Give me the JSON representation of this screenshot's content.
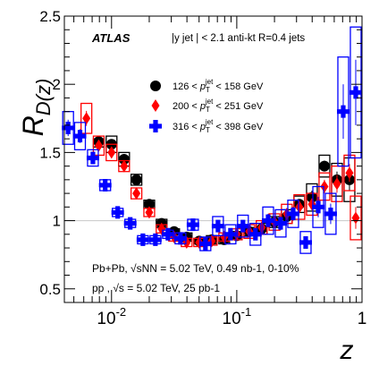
{
  "chart_data": {
    "type": "scatter",
    "x_scale": "log",
    "xlim": [
      0.0042,
      1.0
    ],
    "ylim": [
      0.4,
      2.5
    ],
    "xlabel": "z",
    "ylabel": "R_D(z)",
    "ylabel_main": "R",
    "ylabel_sub": "D(z)",
    "y_ticks": [
      0.5,
      1,
      1.5,
      2,
      2.5
    ],
    "y_tick_labels": [
      "0.5",
      "1",
      "1.5",
      "2",
      "2.5"
    ],
    "x_ticks": [
      0.01,
      0.1,
      1
    ],
    "x_tick_labels": [
      {
        "base": "10",
        "exp": "-2"
      },
      {
        "base": "10",
        "exp": "-1"
      },
      {
        "base": "1",
        "exp": ""
      }
    ],
    "reference_line": 1.0,
    "annotations": {
      "atlas": "ATLAS",
      "selection": "|y jet | < 2.1 anti-kt R=0.4 jets",
      "pbpb": "Pb+Pb, √sNN = 5.02 TeV, 0.49 nb-1, 0-10%",
      "pp": "pp , √s = 5.02 TeV, 25 pb-1"
    },
    "legend_position": "upper-center",
    "series": [
      {
        "name": "126 < pTjet < 158 GeV",
        "name_parts": {
          "low": "126",
          "high": "158",
          "unit": "GeV"
        },
        "marker": "circle",
        "color": "#000000",
        "x": [
          0.0079,
          0.01,
          0.0126,
          0.0158,
          0.02,
          0.0251,
          0.0316,
          0.0398,
          0.0501,
          0.0631,
          0.0794,
          0.1,
          0.126,
          0.158,
          0.2,
          0.251,
          0.316,
          0.398,
          0.501,
          0.631,
          0.794
        ],
        "y": [
          1.58,
          1.56,
          1.45,
          1.3,
          1.12,
          0.98,
          0.92,
          0.88,
          0.85,
          0.86,
          0.86,
          0.89,
          0.92,
          0.94,
          0.99,
          1.03,
          1.12,
          1.17,
          1.4,
          1.3,
          1.3
        ],
        "sys_hi": [
          1.6,
          1.62,
          1.5,
          1.34,
          1.15,
          1.01,
          0.94,
          0.91,
          0.87,
          0.89,
          0.89,
          0.92,
          0.95,
          0.98,
          1.03,
          1.08,
          1.18,
          1.27,
          1.48,
          1.42,
          1.46
        ],
        "sys_lo": [
          1.54,
          1.5,
          1.4,
          1.26,
          1.09,
          0.95,
          0.9,
          0.85,
          0.83,
          0.83,
          0.83,
          0.86,
          0.89,
          0.9,
          0.95,
          0.98,
          1.06,
          1.07,
          1.32,
          1.18,
          1.14
        ]
      },
      {
        "name": "200 < pTjet < 251 GeV",
        "name_parts": {
          "low": "200",
          "high": "251",
          "unit": "GeV"
        },
        "marker": "diamond",
        "color": "#ff0000",
        "x": [
          0.0063,
          0.0079,
          0.01,
          0.0126,
          0.0158,
          0.02,
          0.0251,
          0.0316,
          0.0398,
          0.0501,
          0.0631,
          0.0794,
          0.1,
          0.126,
          0.158,
          0.2,
          0.251,
          0.316,
          0.398,
          0.501,
          0.631,
          0.794,
          0.891
        ],
        "y": [
          1.75,
          1.55,
          1.5,
          1.4,
          1.2,
          1.06,
          0.94,
          0.88,
          0.84,
          0.84,
          0.85,
          0.88,
          0.9,
          0.92,
          0.95,
          0.99,
          1.05,
          1.1,
          1.12,
          1.25,
          1.27,
          1.35,
          1.02
        ],
        "sys_hi": [
          1.86,
          1.62,
          1.56,
          1.44,
          1.24,
          1.09,
          0.97,
          0.91,
          0.87,
          0.87,
          0.88,
          0.91,
          0.94,
          0.97,
          1.0,
          1.05,
          1.12,
          1.19,
          1.2,
          1.35,
          1.4,
          1.48,
          1.18
        ],
        "sys_lo": [
          1.64,
          1.48,
          1.44,
          1.36,
          1.16,
          1.03,
          0.91,
          0.85,
          0.81,
          0.81,
          0.82,
          0.85,
          0.86,
          0.87,
          0.9,
          0.93,
          0.98,
          1.01,
          1.04,
          1.15,
          1.14,
          1.22,
          0.86
        ]
      },
      {
        "name": "316 < pTjet < 398 GeV",
        "name_parts": {
          "low": "316",
          "high": "398",
          "unit": "GeV"
        },
        "marker": "cross",
        "color": "#0000ff",
        "x": [
          0.0045,
          0.0056,
          0.0071,
          0.0089,
          0.0112,
          0.0141,
          0.0178,
          0.0224,
          0.0282,
          0.0355,
          0.0447,
          0.0562,
          0.0708,
          0.0891,
          0.112,
          0.141,
          0.178,
          0.224,
          0.282,
          0.355,
          0.447,
          0.562,
          0.708,
          0.891
        ],
        "y": [
          1.68,
          1.62,
          1.46,
          1.26,
          1.06,
          0.98,
          0.86,
          0.86,
          0.9,
          0.87,
          0.97,
          0.83,
          0.96,
          0.9,
          0.96,
          0.9,
          1.0,
          0.98,
          1.05,
          0.84,
          1.1,
          1.05,
          1.8,
          1.94
        ],
        "sys_hi": [
          1.8,
          1.72,
          1.52,
          1.3,
          1.09,
          1.01,
          0.89,
          0.89,
          0.93,
          0.91,
          1.01,
          0.88,
          1.03,
          0.97,
          1.04,
          0.98,
          1.1,
          1.08,
          1.15,
          0.92,
          1.25,
          1.2,
          2.2,
          2.42
        ],
        "sys_lo": [
          1.56,
          1.52,
          1.4,
          1.22,
          1.03,
          0.95,
          0.83,
          0.83,
          0.87,
          0.83,
          0.93,
          0.78,
          0.89,
          0.83,
          0.88,
          0.82,
          0.9,
          0.88,
          0.95,
          0.76,
          0.95,
          0.9,
          1.4,
          1.46
        ]
      }
    ]
  }
}
